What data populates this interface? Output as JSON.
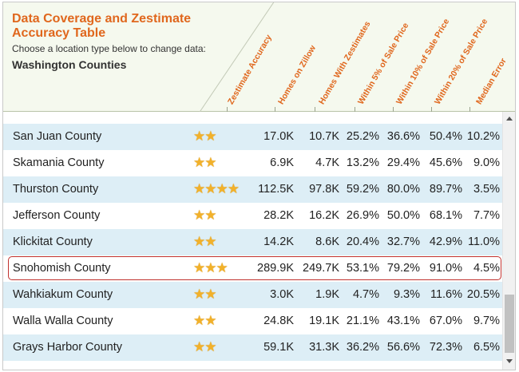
{
  "header": {
    "title": "Data Coverage and Zestimate Accuracy Table",
    "subtitle": "Choose a location type below to change data:",
    "location": "Washington Counties"
  },
  "columns": [
    "Zestimate Accuracy",
    "Homes on Zillow",
    "Homes With Zestimates",
    "Within 5% of Sale Price",
    "Within 10% of Sale Price",
    "Within 20% of Sale Price",
    "Median Error"
  ],
  "rows": [
    {
      "name": "San Juan County",
      "stars": "★★",
      "homes": "17.0K",
      "zest": "10.7K",
      "w5": "25.2%",
      "w10": "36.6%",
      "w20": "50.4%",
      "err": "10.2%"
    },
    {
      "name": "Skamania County",
      "stars": "★★",
      "homes": "6.9K",
      "zest": "4.7K",
      "w5": "13.2%",
      "w10": "29.4%",
      "w20": "45.6%",
      "err": "9.0%"
    },
    {
      "name": "Thurston County",
      "stars": "★★★★",
      "homes": "112.5K",
      "zest": "97.8K",
      "w5": "59.2%",
      "w10": "80.0%",
      "w20": "89.7%",
      "err": "3.5%"
    },
    {
      "name": "Jefferson County",
      "stars": "★★",
      "homes": "28.2K",
      "zest": "16.2K",
      "w5": "26.9%",
      "w10": "50.0%",
      "w20": "68.1%",
      "err": "7.7%"
    },
    {
      "name": "Klickitat County",
      "stars": "★★",
      "homes": "14.2K",
      "zest": "8.6K",
      "w5": "20.4%",
      "w10": "32.7%",
      "w20": "42.9%",
      "err": "11.0%"
    },
    {
      "name": "Snohomish County",
      "stars": "★★★",
      "homes": "289.9K",
      "zest": "249.7K",
      "w5": "53.1%",
      "w10": "79.2%",
      "w20": "91.0%",
      "err": "4.5%"
    },
    {
      "name": "Wahkiakum County",
      "stars": "★★",
      "homes": "3.0K",
      "zest": "1.9K",
      "w5": "4.7%",
      "w10": "9.3%",
      "w20": "11.6%",
      "err": "20.5%"
    },
    {
      "name": "Walla Walla County",
      "stars": "★★",
      "homes": "24.8K",
      "zest": "19.1K",
      "w5": "21.1%",
      "w10": "43.1%",
      "w20": "67.0%",
      "err": "9.7%"
    },
    {
      "name": "Grays Harbor County",
      "stars": "★★",
      "homes": "59.1K",
      "zest": "31.3K",
      "w5": "36.2%",
      "w10": "56.6%",
      "w20": "72.3%",
      "err": "6.5%"
    }
  ],
  "selected_row": "Snohomish County",
  "colors": {
    "accent": "#e0671d",
    "row_alt": "#ddeef6",
    "header_bg": "#f5f9ee",
    "selection": "#c0312e",
    "star": "#f2b12a"
  }
}
